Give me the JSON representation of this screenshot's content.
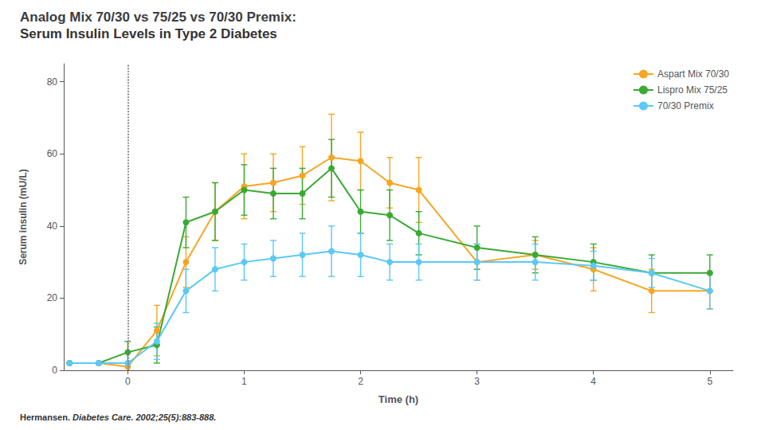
{
  "chart_data": {
    "type": "line",
    "title": "Analog Mix 70/30 vs 75/25 vs 70/30 Premix:",
    "subtitle": "Serum Insulin Levels in Type 2 Diabetes",
    "xlabel": "Time (h)",
    "ylabel": "Serum insulin (mU/L)",
    "footnote_bold": "Hermansen.",
    "footnote_italic": "Diabetes Care. 2002;25(5):883-888.",
    "xlim": [
      -0.55,
      5.2
    ],
    "ylim": [
      0,
      85
    ],
    "xticks": [
      0,
      1,
      2,
      3,
      4,
      5
    ],
    "yticks": [
      0,
      20,
      40,
      60,
      80
    ],
    "grid": false,
    "legend": "upper right",
    "marker": "circle",
    "line_style": "solid",
    "vline_x": 0.0,
    "x": [
      -0.5,
      -0.25,
      0.0,
      0.25,
      0.5,
      0.75,
      1.0,
      1.25,
      1.5,
      1.75,
      2.0,
      2.25,
      2.5,
      3.0,
      3.5,
      4.0,
      4.5,
      5.0
    ],
    "series": [
      {
        "name": "Aspart Mix 70/30",
        "color": "#f5a623",
        "values": [
          2,
          2,
          1,
          11,
          30,
          44,
          51,
          52,
          54,
          59,
          58,
          52,
          50,
          30,
          32,
          28,
          22,
          22
        ],
        "yerr": [
          0,
          0,
          0,
          7,
          7,
          8,
          9,
          8,
          8,
          12,
          8,
          7,
          9,
          5,
          4,
          6,
          6,
          5
        ]
      },
      {
        "name": "Lispro Mix 75/25",
        "color": "#3aaa35",
        "values": [
          2,
          2,
          5,
          7,
          41,
          44,
          50,
          49,
          49,
          56,
          44,
          43,
          38,
          34,
          32,
          30,
          27,
          27
        ],
        "yerr": [
          0,
          0,
          3,
          5,
          7,
          8,
          7,
          7,
          7,
          8,
          6,
          7,
          6,
          6,
          5,
          5,
          5,
          5
        ]
      },
      {
        "name": "70/30 Premix",
        "color": "#5bc8f5",
        "values": [
          2,
          2,
          2,
          8,
          22,
          28,
          30,
          31,
          32,
          33,
          32,
          30,
          30,
          30,
          30,
          29,
          27,
          22
        ],
        "yerr": [
          0,
          0,
          0,
          5,
          6,
          6,
          5,
          5,
          6,
          7,
          6,
          5,
          5,
          5,
          5,
          4,
          4,
          5
        ]
      }
    ]
  }
}
